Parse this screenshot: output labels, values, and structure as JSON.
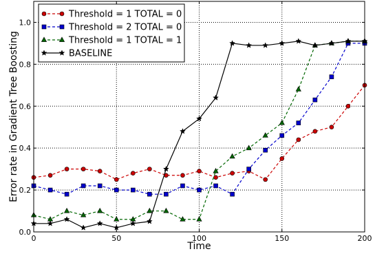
{
  "chart_data": {
    "type": "line",
    "xlabel": "Time",
    "ylabel": "Error rate in Gradient Tree Boosting",
    "xlim": [
      0,
      200
    ],
    "ylim": [
      0,
      1.1
    ],
    "xticks": [
      0,
      50,
      100,
      150,
      200
    ],
    "xtick_labels": [
      "0",
      "50",
      "100",
      "150",
      "200"
    ],
    "yticks": [
      0.0,
      0.2,
      0.4,
      0.6,
      0.8,
      1.0
    ],
    "ytick_labels": [
      "0.0",
      "0.2",
      "0.4",
      "0.6",
      "0.8",
      "1.0"
    ],
    "grid": true,
    "legend_position": "top-left",
    "x": [
      0,
      10,
      20,
      30,
      40,
      50,
      60,
      70,
      80,
      90,
      100,
      110,
      120,
      130,
      140,
      150,
      160,
      170,
      180,
      190,
      200
    ],
    "series": [
      {
        "name": "Threshold = 1    TOTAL = 0",
        "color": "#cc0000",
        "marker": "circle",
        "dash": true,
        "values": [
          0.26,
          0.27,
          0.3,
          0.3,
          0.29,
          0.25,
          0.28,
          0.3,
          0.27,
          0.27,
          0.29,
          0.26,
          0.28,
          0.29,
          0.25,
          0.35,
          0.44,
          0.48,
          0.5,
          0.6,
          0.7
        ]
      },
      {
        "name": "Threshold = 2    TOTAL = 0",
        "color": "#0000cc",
        "marker": "square",
        "dash": true,
        "values": [
          0.22,
          0.2,
          0.18,
          0.22,
          0.22,
          0.2,
          0.2,
          0.18,
          0.18,
          0.22,
          0.2,
          0.22,
          0.18,
          0.3,
          0.39,
          0.46,
          0.52,
          0.63,
          0.74,
          0.9,
          0.9
        ]
      },
      {
        "name": "Threshold = 1    TOTAL = 1",
        "color": "#006600",
        "marker": "triangle",
        "dash": true,
        "values": [
          0.08,
          0.06,
          0.1,
          0.08,
          0.1,
          0.06,
          0.06,
          0.1,
          0.1,
          0.06,
          0.06,
          0.29,
          0.36,
          0.4,
          0.46,
          0.52,
          0.68,
          0.89,
          0.9,
          0.91,
          0.91
        ]
      },
      {
        "name": "BASELINE",
        "color": "#000000",
        "marker": "star",
        "dash": false,
        "values": [
          0.04,
          0.04,
          0.06,
          0.02,
          0.04,
          0.02,
          0.04,
          0.05,
          0.3,
          0.48,
          0.54,
          0.64,
          0.9,
          0.89,
          0.89,
          0.9,
          0.91,
          0.89,
          0.9,
          0.91,
          0.91
        ]
      }
    ]
  }
}
